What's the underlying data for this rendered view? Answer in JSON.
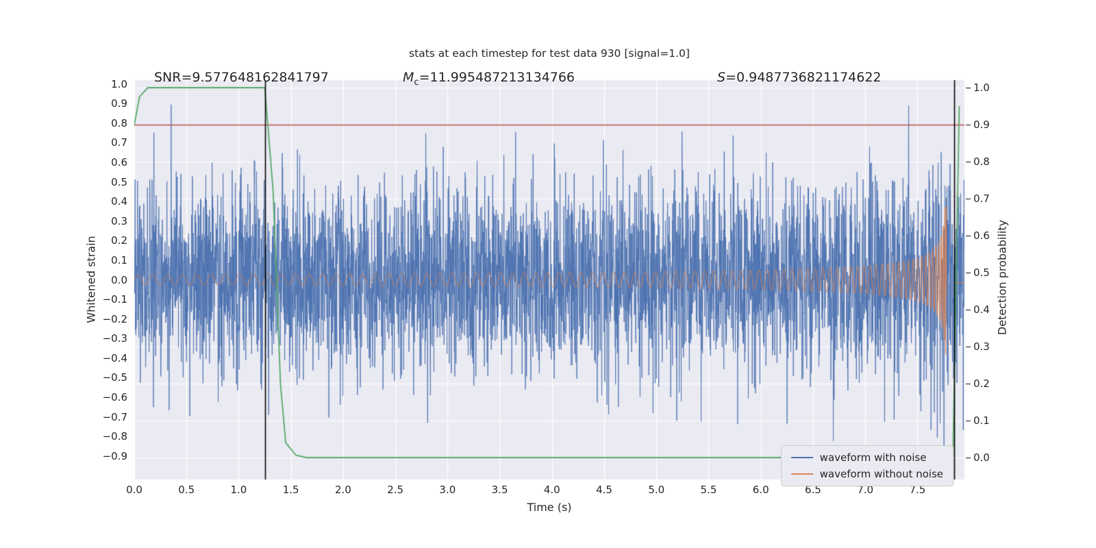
{
  "title": "stats at each timestep for test data 930 [signal=1.0]",
  "annotations": {
    "snr": "SNR=9.577648162841797",
    "mc_label": "M",
    "mc_sub": "c",
    "mc_eq": "=11.995487213134766",
    "s_label": "S",
    "s_eq": "=0.9487736821174622"
  },
  "axes": {
    "xlabel": "Time (s)",
    "ylabel_left": "Whitened strain",
    "ylabel_right": "Detection probability"
  },
  "colors": {
    "plot_background": "#eaeaf2",
    "grid": "#ffffff",
    "text": "#262626",
    "noise_blue": "#4c72b0",
    "signal_orange": "#dd8452",
    "detection_green": "#55a868",
    "threshold_red": "#c44e52",
    "event_black": "#000000"
  },
  "chart_data": {
    "type": "line",
    "title": "stats at each timestep for test data 930 [signal=1.0]",
    "xlabel": "Time (s)",
    "ylabel_left": "Whitened strain",
    "ylabel_right": "Detection probability",
    "xlim": [
      0,
      7.95
    ],
    "ylim_left": [
      -1.02,
      1.02
    ],
    "ylim_right": [
      -0.0593,
      1.0204
    ],
    "xticks": [
      0.0,
      0.5,
      1.0,
      1.5,
      2.0,
      2.5,
      3.0,
      3.5,
      4.0,
      4.5,
      5.0,
      5.5,
      6.0,
      6.5,
      7.0,
      7.5
    ],
    "yticks_left": [
      1.0,
      0.9,
      0.8,
      0.7,
      0.6,
      0.5,
      0.4,
      0.3,
      0.2,
      0.1,
      0.0,
      -0.1,
      -0.2,
      -0.3,
      -0.4,
      -0.5,
      -0.6,
      -0.7,
      -0.8,
      -0.9
    ],
    "yticks_right": [
      1.0,
      0.9,
      0.8,
      0.7,
      0.6,
      0.5,
      0.4,
      0.3,
      0.2,
      0.1,
      0.0
    ],
    "grid": {
      "vertical": "xticks",
      "horizontal": "yticks_right",
      "color": "#ffffff"
    },
    "threshold": {
      "axis": "right",
      "value": 0.9,
      "color": "#c44e52"
    },
    "event_lines": {
      "color": "#000000",
      "x": [
        1.25,
        7.85
      ]
    },
    "detection_probability": {
      "name": "detection probability",
      "axis": "right",
      "color": "#55a868",
      "points": [
        [
          0.0,
          0.9
        ],
        [
          0.05,
          0.975
        ],
        [
          0.13,
          1.0
        ],
        [
          1.25,
          1.0
        ],
        [
          1.33,
          0.72
        ],
        [
          1.4,
          0.2
        ],
        [
          1.45,
          0.04
        ],
        [
          1.55,
          0.006
        ],
        [
          1.65,
          0.0
        ],
        [
          7.8,
          0.0
        ],
        [
          7.84,
          0.01
        ],
        [
          7.9,
          0.95
        ]
      ]
    },
    "series": [
      {
        "name": "waveform with noise",
        "axis": "left",
        "color": "#4c72b0",
        "kind": "noise_plus_signal",
        "sigma": 0.25,
        "n": 4096,
        "seed": 930,
        "clip": 0.95
      },
      {
        "name": "waveform without noise",
        "axis": "left",
        "color": "#dd8452",
        "kind": "chirp",
        "a0": 0.028,
        "amp_exp": 0.42,
        "amp_max": 0.38,
        "f0": 7,
        "freq_exp": 0.375,
        "t_merger": 7.78,
        "post_merger_level": -0.015,
        "post_merger_start": 7.87
      }
    ]
  },
  "legend": {
    "items": [
      {
        "label": "waveform with noise",
        "color": "#4c72b0"
      },
      {
        "label": "waveform without noise",
        "color": "#dd8452"
      }
    ]
  }
}
